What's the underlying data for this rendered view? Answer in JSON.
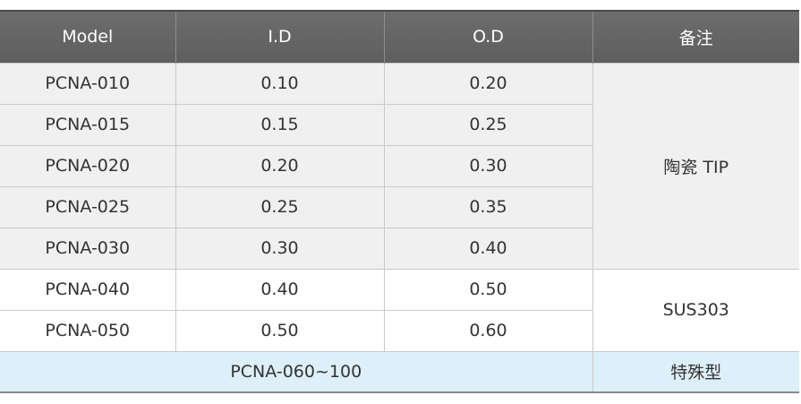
{
  "headers": [
    "Model",
    "I.D",
    "O.D",
    "备注"
  ],
  "ceramic_rows": [
    {
      "model": "PCNA-010",
      "id": "0.10",
      "od": "0.20"
    },
    {
      "model": "PCNA-015",
      "id": "0.15",
      "od": "0.25"
    },
    {
      "model": "PCNA-020",
      "id": "0.20",
      "od": "0.30"
    },
    {
      "model": "PCNA-025",
      "id": "0.25",
      "od": "0.35"
    },
    {
      "model": "PCNA-030",
      "id": "0.30",
      "od": "0.40"
    }
  ],
  "ceramic_note": "陶瓷 TIP",
  "sus_rows": [
    {
      "model": "PCNA-040",
      "id": "0.40",
      "od": "0.50"
    },
    {
      "model": "PCNA-050",
      "id": "0.50",
      "od": "0.60"
    }
  ],
  "sus_note": "SUS303",
  "special_row": {
    "model": "PCNA-060~100",
    "note": "特殊型"
  }
}
